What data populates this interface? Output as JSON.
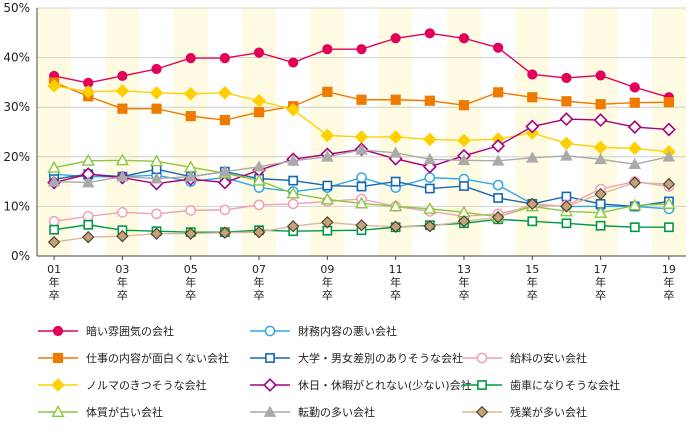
{
  "chart_data": {
    "type": "line",
    "x": [
      "01",
      "02",
      "03",
      "04",
      "05",
      "06",
      "07",
      "08",
      "09",
      "10",
      "11",
      "12",
      "13",
      "14",
      "15",
      "16",
      "17",
      "18",
      "19"
    ],
    "x_tick_labels": [
      {
        "x": "01",
        "lines": [
          "01",
          "年",
          "卒"
        ]
      },
      {
        "x": "03",
        "lines": [
          "03",
          "年",
          "卒"
        ]
      },
      {
        "x": "05",
        "lines": [
          "05",
          "年",
          "卒"
        ]
      },
      {
        "x": "07",
        "lines": [
          "07",
          "年",
          "卒"
        ]
      },
      {
        "x": "09",
        "lines": [
          "09",
          "年",
          "卒"
        ]
      },
      {
        "x": "11",
        "lines": [
          "11",
          "年",
          "卒"
        ]
      },
      {
        "x": "13",
        "lines": [
          "13",
          "年",
          "卒"
        ]
      },
      {
        "x": "15",
        "lines": [
          "15",
          "年",
          "卒"
        ]
      },
      {
        "x": "17",
        "lines": [
          "17",
          "年",
          "卒"
        ]
      },
      {
        "x": "19",
        "lines": [
          "19",
          "年",
          "卒"
        ]
      }
    ],
    "y_ticks": [
      "0%",
      "10%",
      "20%",
      "30%",
      "40%",
      "50%"
    ],
    "ylim": [
      0,
      50
    ],
    "title": "",
    "xlabel": "",
    "ylabel": "",
    "grid": "horizontal",
    "background_bands": [
      "#fffbe3",
      "#ffffff"
    ],
    "legend_placement": "bottom",
    "series": [
      {
        "name": "暗い雰囲気の会社",
        "color": "#e2005a",
        "marker": "circle-filled",
        "values": [
          36.3,
          34.9,
          36.3,
          37.7,
          39.9,
          39.9,
          41.0,
          39.0,
          41.7,
          41.7,
          43.9,
          44.9,
          43.9,
          42.0,
          36.6,
          35.9,
          36.4,
          34.0,
          32.0
        ]
      },
      {
        "name": "財務内容の悪い会社",
        "color": "#32a9e0",
        "marker": "circle-open",
        "values": [
          16.5,
          16.0,
          16.0,
          16.3,
          15.0,
          15.8,
          13.8,
          13.0,
          13.8,
          15.8,
          13.8,
          15.8,
          15.5,
          14.3,
          10.5,
          10.0,
          10.0,
          10.0,
          9.5
        ]
      },
      {
        "name": "仕事の内容が面白くない会社",
        "color": "#ee7a00",
        "marker": "square-filled",
        "values": [
          35.0,
          32.2,
          29.7,
          29.7,
          28.2,
          27.4,
          29.0,
          30.2,
          33.1,
          31.5,
          31.5,
          31.3,
          30.4,
          33.0,
          32.0,
          31.2,
          30.6,
          30.9,
          31.0
        ]
      },
      {
        "name": "大学・男女差別のありそうな会社",
        "color": "#1668b4",
        "marker": "square-open",
        "values": [
          15.5,
          16.5,
          16.0,
          17.5,
          16.0,
          17.0,
          15.6,
          15.2,
          14.2,
          14.0,
          15.0,
          13.6,
          14.1,
          11.7,
          10.5,
          12.0,
          10.5,
          10.0,
          11.0
        ]
      },
      {
        "name": "給料の安い会社",
        "color": "#f0a0b4",
        "marker": "circle-open",
        "values": [
          7.0,
          8.0,
          8.8,
          8.5,
          9.2,
          9.3,
          10.3,
          10.5,
          11.0,
          11.5,
          10.0,
          9.0,
          8.0,
          8.5,
          10.0,
          10.2,
          13.5,
          15.0,
          14.0
        ]
      },
      {
        "name": "ノルマのきつそうな会社",
        "color": "#ffd000",
        "marker": "diamond-filled",
        "values": [
          34.3,
          33.1,
          33.3,
          32.9,
          32.7,
          32.9,
          31.3,
          29.5,
          24.3,
          24.0,
          24.0,
          23.5,
          23.3,
          23.6,
          24.8,
          22.7,
          21.9,
          21.7,
          21.0
        ]
      },
      {
        "name": "休日・休暇がとれない(少ない)会社",
        "color": "#a6007d",
        "marker": "diamond-open",
        "values": [
          14.8,
          16.5,
          15.8,
          14.6,
          15.5,
          14.8,
          17.3,
          19.5,
          20.5,
          21.5,
          19.6,
          18.0,
          20.2,
          22.2,
          26.1,
          27.6,
          27.4,
          26.0,
          25.5
        ]
      },
      {
        "name": "歯車になりそうな会社",
        "color": "#009a44",
        "marker": "square-open",
        "values": [
          5.3,
          6.3,
          5.2,
          5.0,
          4.8,
          4.8,
          5.2,
          5.0,
          5.1,
          5.2,
          5.8,
          6.2,
          6.6,
          7.4,
          7.0,
          6.6,
          6.1,
          5.8,
          5.8
        ]
      },
      {
        "name": "体質が古い会社",
        "color": "#8cc63f",
        "marker": "triangle-open",
        "values": [
          17.8,
          19.2,
          19.3,
          19.1,
          17.9,
          16.7,
          15.2,
          12.6,
          11.4,
          10.6,
          10.0,
          9.5,
          8.8,
          7.9,
          10.0,
          9.0,
          8.7,
          10.2,
          10.5
        ]
      },
      {
        "name": "転勤の多い会社",
        "color": "#aaaaaa",
        "marker": "triangle-filled",
        "values": [
          15.0,
          14.8,
          16.0,
          15.6,
          16.0,
          17.0,
          18.0,
          19.2,
          20.0,
          21.4,
          20.8,
          19.5,
          19.3,
          19.2,
          19.8,
          20.2,
          19.5,
          18.5,
          20.0
        ]
      },
      {
        "name": "残業が多い会社",
        "color": "#d9b99a",
        "marker": "diamond-brown",
        "values": [
          2.8,
          3.8,
          4.0,
          4.5,
          4.5,
          4.7,
          4.8,
          6.0,
          6.8,
          6.2,
          5.9,
          6.0,
          7.0,
          7.8,
          10.5,
          10.0,
          12.5,
          14.8,
          14.5
        ]
      }
    ]
  }
}
